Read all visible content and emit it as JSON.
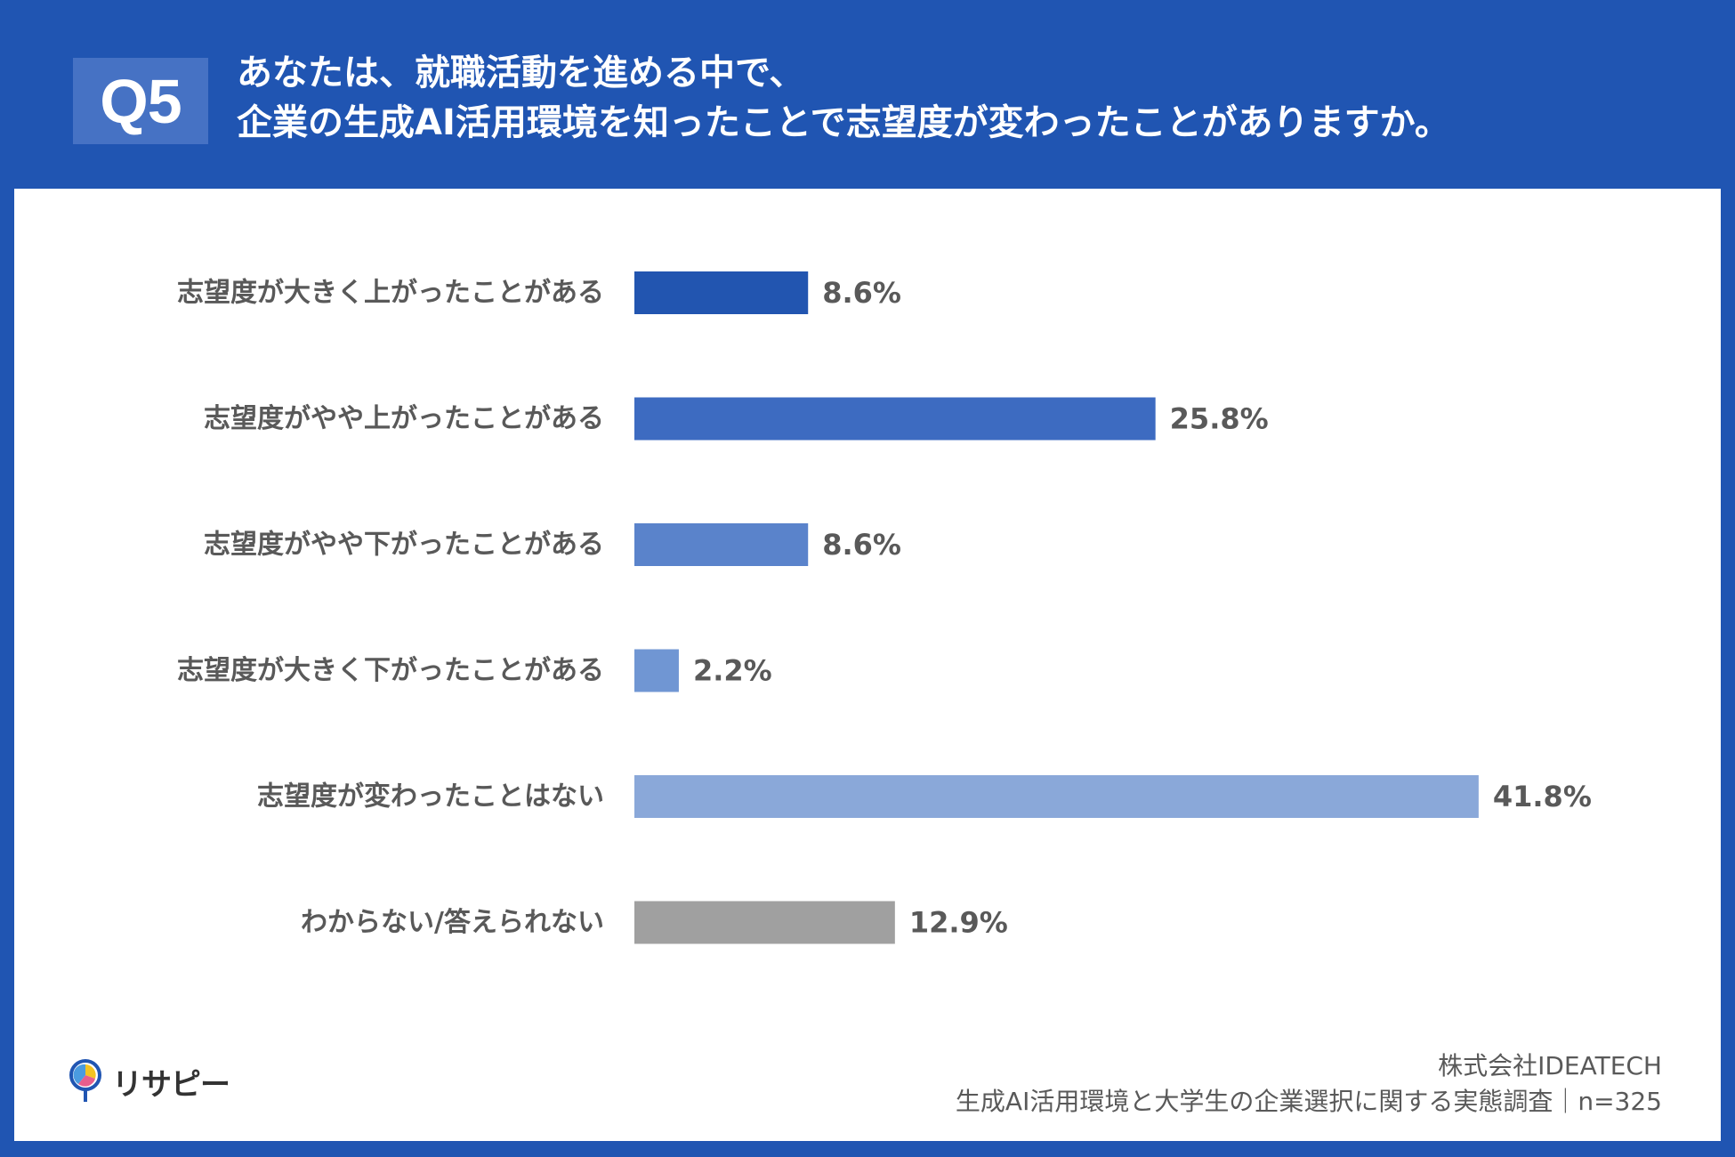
{
  "header": {
    "badge": "Q5",
    "title_line1": "あなたは、就職活動を進める中で、",
    "title_line2": "企業の生成AI活用環境を知ったことで志望度が変わったことがありますか。"
  },
  "chart_data": {
    "type": "bar",
    "orientation": "horizontal",
    "categories": [
      "志望度が大きく上がったことがある",
      "志望度がやや上がったことがある",
      "志望度がやや下がったことがある",
      "志望度が大きく下がったことがある",
      "志望度が変わったことはない",
      "わからない/答えられない"
    ],
    "values": [
      8.6,
      25.8,
      8.6,
      2.2,
      41.8,
      12.9
    ],
    "value_labels": [
      "8.6%",
      "25.8%",
      "8.6%",
      "2.2%",
      "41.8%",
      "12.9%"
    ],
    "colors": [
      "#2255b0",
      "#3d6bc1",
      "#5a83cb",
      "#7096d3",
      "#8aa8d9",
      "#a0a0a0"
    ],
    "unit": "%",
    "xlim": [
      0,
      50
    ],
    "grid": false,
    "legend": "none"
  },
  "footer": {
    "logo_text": "リサピー",
    "company": "株式会社IDEATECH",
    "source": "生成AI活用環境と大学生の企業選択に関する実態調査｜n=325"
  }
}
